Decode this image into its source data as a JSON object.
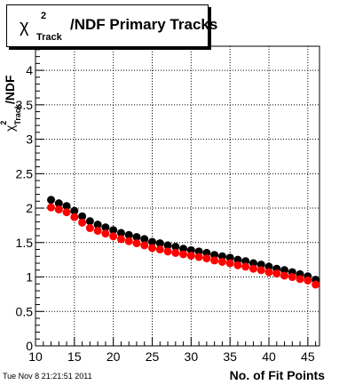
{
  "title": {
    "chi_symbol": "χ",
    "superscript": "2",
    "subscript": "Track",
    "text": "/NDF Primary Tracks"
  },
  "timestamp": "Tue Nov  8 21:21:51 2011",
  "chart_data": {
    "type": "scatter",
    "title": "χ²Track/NDF Primary Tracks",
    "xlabel": "No. of Fit Points",
    "ylabel_parts": {
      "chi": "χ",
      "sup": "2",
      "sub": "Track",
      "suffix": "/NDF"
    },
    "xlim": [
      10,
      46.5
    ],
    "ylim": [
      0,
      4.35
    ],
    "xticks": [
      10,
      15,
      20,
      25,
      30,
      35,
      40,
      45
    ],
    "yticks": [
      0,
      0.5,
      1,
      1.5,
      2,
      2.5,
      3,
      3.5,
      4
    ],
    "grid": true,
    "colors": {
      "series1": "#000000",
      "series2": "#ff0000"
    },
    "series": [
      {
        "color": "#000000",
        "x": [
          12,
          13,
          14,
          15,
          16,
          17,
          18,
          19,
          20,
          21,
          22,
          23,
          24,
          25,
          26,
          27,
          28,
          29,
          30,
          31,
          32,
          33,
          34,
          35,
          36,
          37,
          38,
          39,
          40,
          41,
          42,
          43,
          44,
          45,
          46
        ],
        "y": [
          2.12,
          2.07,
          2.03,
          1.96,
          1.88,
          1.81,
          1.76,
          1.72,
          1.68,
          1.64,
          1.61,
          1.58,
          1.55,
          1.51,
          1.49,
          1.46,
          1.44,
          1.41,
          1.39,
          1.37,
          1.35,
          1.32,
          1.3,
          1.28,
          1.25,
          1.23,
          1.2,
          1.18,
          1.15,
          1.12,
          1.1,
          1.07,
          1.04,
          1.01,
          0.96
        ]
      },
      {
        "color": "#ff0000",
        "x": [
          12,
          13,
          14,
          15,
          16,
          17,
          18,
          19,
          20,
          21,
          22,
          23,
          24,
          25,
          26,
          27,
          28,
          29,
          30,
          31,
          32,
          33,
          34,
          35,
          36,
          37,
          38,
          39,
          40,
          41,
          42,
          43,
          44,
          45,
          46
        ],
        "y": [
          2.01,
          1.98,
          1.94,
          1.87,
          1.79,
          1.71,
          1.67,
          1.63,
          1.59,
          1.55,
          1.52,
          1.49,
          1.46,
          1.42,
          1.4,
          1.37,
          1.35,
          1.33,
          1.31,
          1.29,
          1.27,
          1.24,
          1.22,
          1.2,
          1.17,
          1.15,
          1.12,
          1.1,
          1.07,
          1.05,
          1.02,
          1.0,
          0.97,
          0.95,
          0.89
        ]
      }
    ]
  }
}
